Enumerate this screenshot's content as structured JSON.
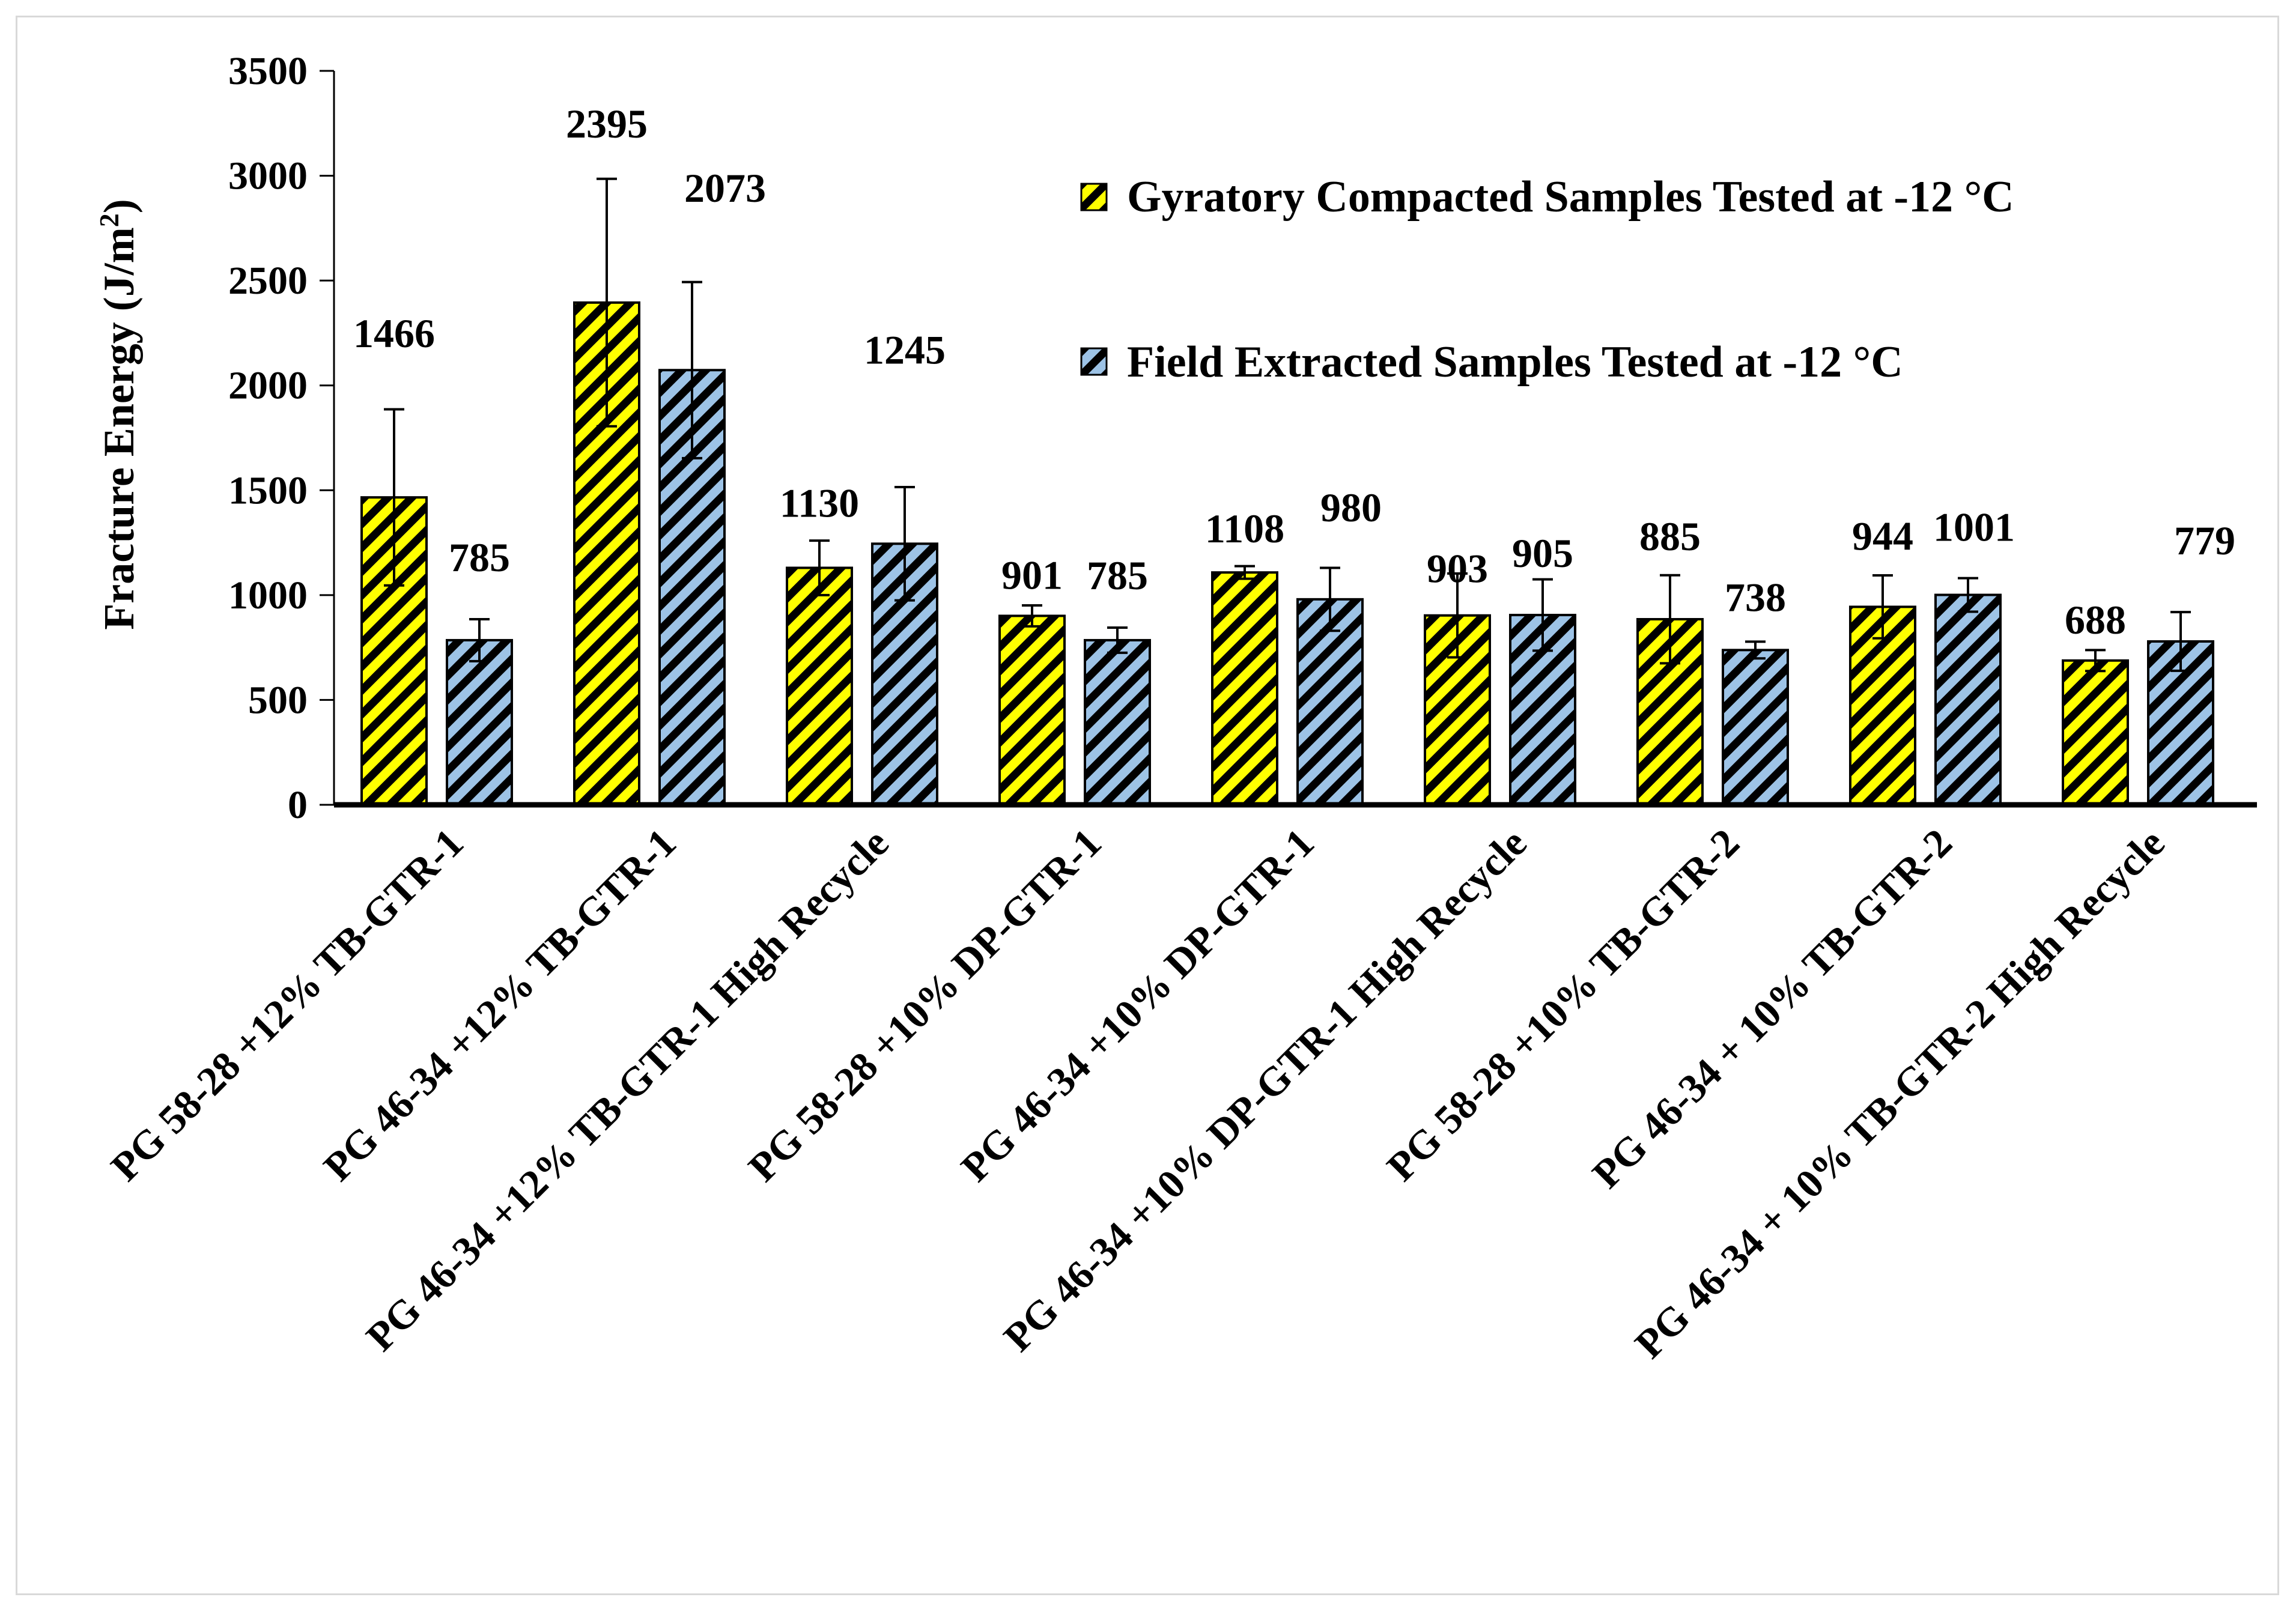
{
  "chart_data": {
    "type": "bar",
    "title": "",
    "xlabel": "",
    "ylabel": "Fracture Energy (J/m²)",
    "ylabel_main": "Fracture Energy (J/m",
    "ylabel_sup": "2",
    "ylabel_close": ")",
    "ylim": [
      0,
      3500
    ],
    "yticks": [
      0,
      500,
      1000,
      1500,
      2000,
      2500,
      3000,
      3500
    ],
    "grid": false,
    "legend_position": "top-right",
    "categories": [
      "PG 58-28 +12% TB-GTR-1",
      "PG 46-34 +12% TB-GTR-1",
      "PG 46-34 +12% TB-GTR-1 High Recycle",
      "PG 58-28 +10% DP-GTR-1",
      "PG 46-34 +10% DP-GTR-1",
      "PG 46-34 +10% DP-GTR-1 High Recycle",
      "PG 58-28 +10% TB-GTR-2",
      "PG 46-34 + 10% TB-GTR-2",
      "PG 46-34 + 10% TB-GTR-2 High Recycle"
    ],
    "series": [
      {
        "name": "Gyratory Compacted Samples Tested at -12 °C",
        "color": "#ffff00",
        "values": [
          1466,
          2395,
          1130,
          901,
          1108,
          903,
          885,
          944,
          688
        ],
        "error": [
          420,
          590,
          130,
          50,
          30,
          200,
          210,
          150,
          50
        ],
        "labels": [
          "1466",
          "2395",
          "1130",
          "901",
          "1108",
          "903",
          "885",
          "944",
          "688"
        ]
      },
      {
        "name": "Field Extracted Samples Tested at -12 °C",
        "color": "#9dc3e6",
        "values": [
          785,
          2073,
          1245,
          785,
          980,
          905,
          738,
          1001,
          779
        ],
        "error": [
          100,
          420,
          270,
          60,
          150,
          170,
          40,
          80,
          140
        ],
        "labels": [
          "785",
          "2073",
          "1245",
          "785",
          "980",
          "905",
          "738",
          "1001",
          "779"
        ]
      }
    ]
  }
}
